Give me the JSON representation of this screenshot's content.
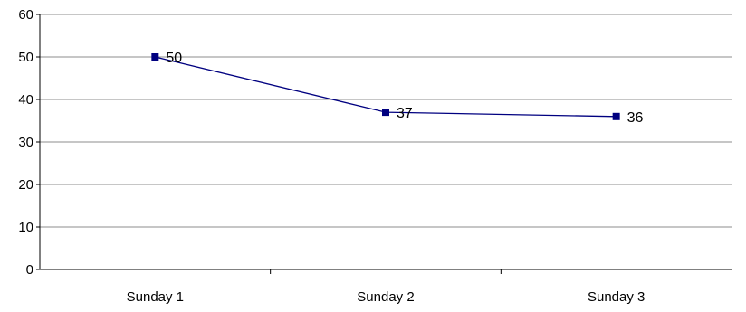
{
  "chart_data": {
    "type": "line",
    "categories": [
      "Sunday 1",
      "Sunday 2",
      "Sunday 3"
    ],
    "series": [
      {
        "values": [
          50,
          37,
          36
        ],
        "color": "#000080"
      }
    ],
    "ylim": [
      0,
      60
    ],
    "yticks": [
      "0",
      "10",
      "20",
      "30",
      "40",
      "50",
      "60"
    ],
    "data_labels": [
      "50",
      "37",
      "36"
    ],
    "grid": true,
    "legend": "none",
    "marker": "square"
  }
}
